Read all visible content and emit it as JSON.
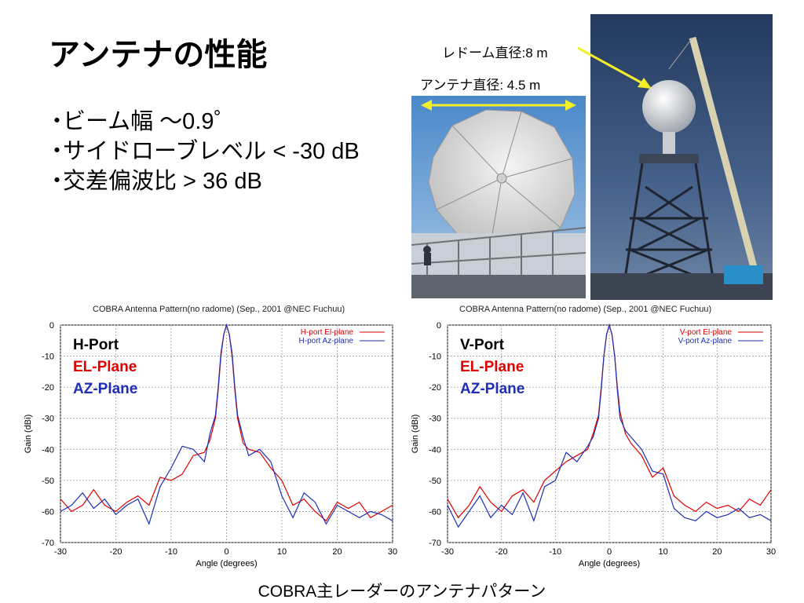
{
  "slide": {
    "title": "アンテナの性能",
    "bullets": [
      "ビーム幅 ～0.9゜",
      "サイドローブレベル < -30 dB",
      "交差偏波比 > 36 dB"
    ],
    "bullet_marker": "・",
    "caption": "COBRA主レーダーのアンテナパターン"
  },
  "photos": {
    "radome_label": "レドーム直径:8 m",
    "antenna_label": "アンテナ直径: 4.5 m",
    "arrow_color": "#f2ee2a"
  },
  "chart_data": [
    {
      "type": "line",
      "title": "COBRA Antenna Pattern(no radome) (Sep., 2001 @NEC Fuchuu)",
      "xlabel": "Angle (degrees)",
      "ylabel": "Gain (dBi)",
      "xlim": [
        -30,
        30
      ],
      "ylim": [
        -70,
        0
      ],
      "xticks": [
        -30,
        -20,
        -10,
        0,
        10,
        20,
        30
      ],
      "yticks": [
        0,
        -10,
        -20,
        -30,
        -40,
        -50,
        -60,
        -70
      ],
      "grid": true,
      "legend_position": "top-right",
      "annotations": [
        {
          "text": "H-Port",
          "color": "#000000"
        },
        {
          "text": "EL-Plane",
          "color": "#e00000"
        },
        {
          "text": "AZ-Plane",
          "color": "#1f2fb5"
        }
      ],
      "series": [
        {
          "name": "H-port El-plane",
          "color": "#e00000",
          "x": [
            -30,
            -28,
            -26,
            -24,
            -22,
            -20,
            -18,
            -16,
            -14,
            -12,
            -10,
            -8,
            -6,
            -4,
            -3,
            -2,
            -1.5,
            -1,
            -0.5,
            0,
            0.5,
            1,
            1.5,
            2,
            3,
            4,
            6,
            8,
            10,
            12,
            14,
            16,
            18,
            20,
            22,
            24,
            26,
            28,
            30
          ],
          "y": [
            -56,
            -60,
            -58,
            -53,
            -58,
            -60,
            -57,
            -55,
            -58,
            -49,
            -50,
            -48,
            -42,
            -41,
            -37,
            -30,
            -21,
            -10,
            -3,
            0,
            -3,
            -10,
            -21,
            -30,
            -38,
            -40,
            -41,
            -46,
            -50,
            -58,
            -56,
            -60,
            -63,
            -57,
            -59,
            -57,
            -62,
            -60,
            -58
          ]
        },
        {
          "name": "H-port Az-plane",
          "color": "#1f2fb5",
          "x": [
            -30,
            -28,
            -26,
            -24,
            -22,
            -20,
            -18,
            -16,
            -14,
            -12,
            -10,
            -8,
            -6,
            -4,
            -3,
            -2,
            -1.5,
            -1,
            -0.5,
            0,
            0.5,
            1,
            1.5,
            2,
            3,
            4,
            6,
            8,
            10,
            12,
            14,
            16,
            18,
            20,
            22,
            24,
            26,
            28,
            30
          ],
          "y": [
            -60,
            -58,
            -54,
            -59,
            -56,
            -61,
            -58,
            -56,
            -64,
            -52,
            -46,
            -39,
            -40,
            -44,
            -35,
            -29,
            -20,
            -9,
            -3,
            0,
            -3,
            -9,
            -20,
            -29,
            -36,
            -42,
            -40,
            -44,
            -55,
            -62,
            -54,
            -57,
            -64,
            -58,
            -60,
            -62,
            -60,
            -61,
            -63
          ]
        }
      ]
    },
    {
      "type": "line",
      "title": "COBRA Antenna Pattern(no radome) (Sep., 2001 @NEC Fuchuu)",
      "xlabel": "Angle (degrees)",
      "ylabel": "Gain (dBi)",
      "xlim": [
        -30,
        30
      ],
      "ylim": [
        -70,
        0
      ],
      "xticks": [
        -30,
        -20,
        -10,
        0,
        10,
        20,
        30
      ],
      "yticks": [
        0,
        -10,
        -20,
        -30,
        -40,
        -50,
        -60,
        -70
      ],
      "grid": true,
      "legend_position": "top-right",
      "annotations": [
        {
          "text": "V-Port",
          "color": "#000000"
        },
        {
          "text": "EL-Plane",
          "color": "#e00000"
        },
        {
          "text": "AZ-Plane",
          "color": "#1f2fb5"
        }
      ],
      "series": [
        {
          "name": "V-port El-plane",
          "color": "#e00000",
          "x": [
            -30,
            -28,
            -26,
            -24,
            -22,
            -20,
            -18,
            -16,
            -14,
            -12,
            -10,
            -8,
            -6,
            -4,
            -3,
            -2,
            -1.5,
            -1,
            -0.5,
            0,
            0.5,
            1,
            1.5,
            2,
            3,
            4,
            6,
            8,
            10,
            12,
            14,
            16,
            18,
            20,
            22,
            24,
            26,
            28,
            30
          ],
          "y": [
            -56,
            -62,
            -58,
            -52,
            -57,
            -60,
            -55,
            -53,
            -57,
            -50,
            -47,
            -44,
            -42,
            -40,
            -35,
            -29,
            -20,
            -10,
            -3,
            0,
            -3,
            -10,
            -20,
            -28,
            -35,
            -38,
            -42,
            -49,
            -46,
            -55,
            -58,
            -60,
            -57,
            -59,
            -58,
            -60,
            -56,
            -58,
            -53
          ]
        },
        {
          "name": "V-port Az-plane",
          "color": "#1f2fb5",
          "x": [
            -30,
            -28,
            -26,
            -24,
            -22,
            -20,
            -18,
            -16,
            -14,
            -12,
            -10,
            -8,
            -6,
            -4,
            -3,
            -2,
            -1.5,
            -1,
            -0.5,
            0,
            0.5,
            1,
            1.5,
            2,
            3,
            4,
            6,
            8,
            10,
            12,
            14,
            16,
            18,
            20,
            22,
            24,
            26,
            28,
            30
          ],
          "y": [
            -58,
            -65,
            -60,
            -55,
            -62,
            -58,
            -61,
            -54,
            -63,
            -52,
            -50,
            -41,
            -44,
            -39,
            -36,
            -30,
            -21,
            -10,
            -3,
            0,
            -3,
            -10,
            -21,
            -30,
            -34,
            -36,
            -40,
            -47,
            -48,
            -59,
            -62,
            -63,
            -60,
            -62,
            -61,
            -59,
            -62,
            -61,
            -63
          ]
        }
      ]
    }
  ]
}
